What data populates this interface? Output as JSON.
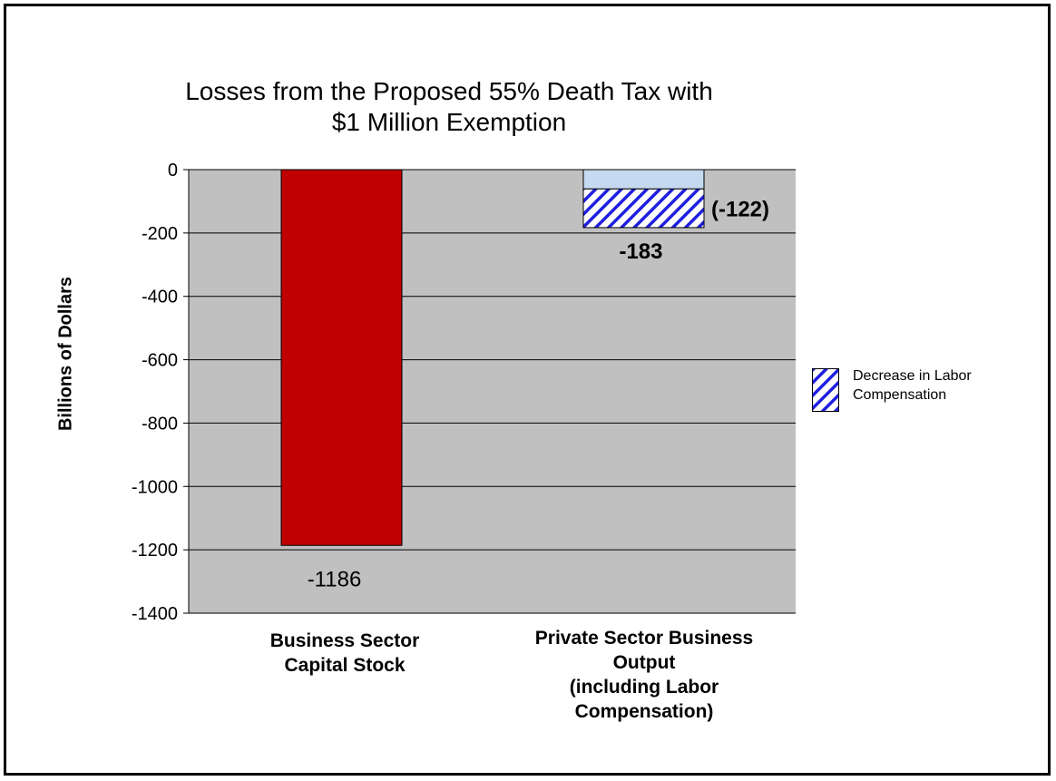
{
  "chart_data": {
    "type": "bar",
    "title": "Losses from the Proposed 55% Death Tax with\n$1 Million Exemption",
    "ylabel": "Billions of Dollars",
    "xlabel": "",
    "ylim": [
      -1400,
      0
    ],
    "yticks": [
      0,
      -200,
      -400,
      -600,
      -800,
      -1000,
      -1200,
      -1400
    ],
    "ytick_labels": [
      "0",
      "-200",
      "-400",
      "-600",
      "-800",
      "-1000",
      "-1200",
      "-1400"
    ],
    "categories": [
      "Business Sector\nCapital Stock",
      "Private Sector Business\nOutput\n(including Labor\nCompensation)"
    ],
    "series": [
      {
        "name": "Decrease in Labor Compensation",
        "values": [
          null,
          -122
        ]
      }
    ],
    "totals": [
      -1186,
      -183
    ],
    "data_labels": {
      "capital_total": "-1186",
      "output_total": "-183",
      "labor_comp": "(-122)"
    },
    "grid": true,
    "legend_position": "right",
    "colors": {
      "capital_bar": "#c00000",
      "output_bar": "#c5d9f1",
      "hatch": "#1f1fe0",
      "plot_bg": "#c0c0c0"
    }
  }
}
